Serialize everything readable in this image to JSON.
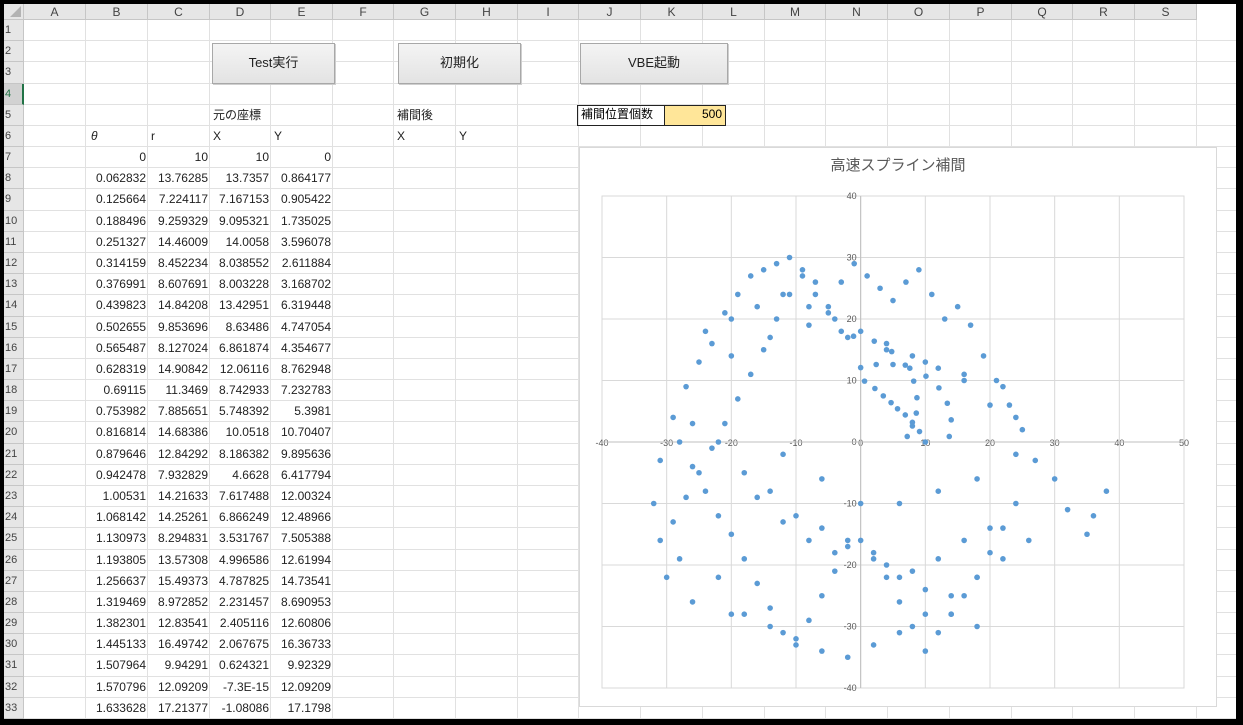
{
  "columns": [
    "A",
    "B",
    "C",
    "D",
    "E",
    "F",
    "G",
    "H",
    "I",
    "J",
    "K",
    "L",
    "M",
    "N",
    "O",
    "P",
    "Q",
    "R",
    "S"
  ],
  "rows": [
    "1",
    "2",
    "3",
    "4",
    "5",
    "6",
    "7",
    "8",
    "9",
    "10",
    "11",
    "12",
    "13",
    "14",
    "15",
    "16",
    "17",
    "18",
    "19",
    "20",
    "21",
    "22",
    "23",
    "24",
    "25",
    "26",
    "27",
    "28",
    "29",
    "30",
    "31",
    "32",
    "33"
  ],
  "buttons": {
    "test": "Test実行",
    "init": "初期化",
    "vbe": "VBE起動"
  },
  "labels": {
    "original": "元の座標",
    "interpolated": "補間後",
    "theta": "θ",
    "r": "r",
    "x": "X",
    "y": "Y",
    "x2": "X",
    "y2": "Y",
    "count_label": "補間位置個数",
    "count_value": "500"
  },
  "table": [
    [
      "0",
      "10",
      "10",
      "0"
    ],
    [
      "0.062832",
      "13.76285",
      "13.7357",
      "0.864177"
    ],
    [
      "0.125664",
      "7.224117",
      "7.167153",
      "0.905422"
    ],
    [
      "0.188496",
      "9.259329",
      "9.095321",
      "1.735025"
    ],
    [
      "0.251327",
      "14.46009",
      "14.0058",
      "3.596078"
    ],
    [
      "0.314159",
      "8.452234",
      "8.038552",
      "2.611884"
    ],
    [
      "0.376991",
      "8.607691",
      "8.003228",
      "3.168702"
    ],
    [
      "0.439823",
      "14.84208",
      "13.42951",
      "6.319448"
    ],
    [
      "0.502655",
      "9.853696",
      "8.63486",
      "4.747054"
    ],
    [
      "0.565487",
      "8.127024",
      "6.861874",
      "4.354677"
    ],
    [
      "0.628319",
      "14.90842",
      "12.06116",
      "8.762948"
    ],
    [
      "0.69115",
      "11.3469",
      "8.742933",
      "7.232783"
    ],
    [
      "0.753982",
      "7.885651",
      "5.748392",
      "5.3981"
    ],
    [
      "0.816814",
      "14.68386",
      "10.0518",
      "10.70407"
    ],
    [
      "0.879646",
      "12.84292",
      "8.186382",
      "9.895636"
    ],
    [
      "0.942478",
      "7.932829",
      "4.6628",
      "6.417794"
    ],
    [
      "1.00531",
      "14.21633",
      "7.617488",
      "12.00324"
    ],
    [
      "1.068142",
      "14.25261",
      "6.866249",
      "12.48966"
    ],
    [
      "1.130973",
      "8.294831",
      "3.531767",
      "7.505388"
    ],
    [
      "1.193805",
      "13.57308",
      "4.996586",
      "12.61994"
    ],
    [
      "1.256637",
      "15.49373",
      "4.787825",
      "14.73541"
    ],
    [
      "1.319469",
      "8.972852",
      "2.231457",
      "8.690953"
    ],
    [
      "1.382301",
      "12.83541",
      "2.405116",
      "12.60806"
    ],
    [
      "1.445133",
      "16.49742",
      "2.067675",
      "16.36733"
    ],
    [
      "1.507964",
      "9.94291",
      "0.624321",
      "9.92329"
    ],
    [
      "1.570796",
      "12.09209",
      "-7.3E-15",
      "12.09209"
    ],
    [
      "1.633628",
      "17.21377",
      "-1.08086",
      "17.1798"
    ]
  ],
  "chart_data": {
    "type": "scatter",
    "title": "高速スプライン補間",
    "xlim": [
      -40,
      50
    ],
    "ylim": [
      -40,
      40
    ],
    "xticks": [
      "-40",
      "-30",
      "-20",
      "-10",
      "0",
      "10",
      "20",
      "30",
      "40",
      "50"
    ],
    "yticks": [
      "40",
      "30",
      "20",
      "10",
      "0",
      "-10",
      "-20",
      "-30",
      "-40"
    ],
    "grid": true,
    "color": "#5b9bd5",
    "x": [
      10,
      13.7,
      7.2,
      9.1,
      14.0,
      8.0,
      8.0,
      13.4,
      8.6,
      6.9,
      12.1,
      8.7,
      5.7,
      10.1,
      8.2,
      4.7,
      7.6,
      6.9,
      3.5,
      5.0,
      4.8,
      2.2,
      2.4,
      2.1,
      0.6,
      0.0,
      -1.1,
      -3,
      -5,
      -7,
      -9,
      -11,
      -13,
      -15,
      -17,
      -19,
      -21,
      -23,
      -25,
      -27,
      -29,
      -31,
      -32,
      -31,
      -29,
      -27,
      -25,
      -23,
      -21,
      -19,
      -17,
      -15,
      -13,
      -11,
      -9,
      -7,
      -5,
      -3,
      -1,
      1,
      3,
      5,
      7,
      9,
      11,
      13,
      15,
      17,
      19,
      21,
      23,
      25,
      27,
      30,
      32,
      35,
      36,
      38,
      24,
      22,
      20,
      18,
      16,
      14,
      12,
      10,
      8,
      6,
      4,
      2,
      0,
      -2,
      -4,
      -6,
      -8,
      -10,
      -12,
      -14,
      -16,
      -18,
      -20,
      -22,
      -24,
      -26,
      -28,
      -22,
      -18,
      -14,
      -10,
      -6,
      -2,
      2,
      6,
      10,
      14,
      18,
      22,
      26,
      -16,
      -12,
      -8,
      -4,
      4,
      8,
      12,
      16,
      20,
      -24,
      -20,
      -16,
      -12,
      -8,
      -4,
      0,
      4,
      8,
      12,
      16,
      20,
      24,
      -26,
      -22,
      -18,
      -14,
      -10,
      -6,
      -2,
      2,
      6,
      10,
      14,
      18,
      -20,
      -14,
      -8,
      -2,
      4,
      10,
      16,
      22,
      -12,
      -6,
      0,
      6,
      12,
      18,
      24,
      -28,
      -30,
      -26,
      -20
    ],
    "y": [
      0,
      0.9,
      0.9,
      1.7,
      3.6,
      2.6,
      3.2,
      6.3,
      4.7,
      4.4,
      8.8,
      7.2,
      5.4,
      10.7,
      9.9,
      6.4,
      12.0,
      12.5,
      7.5,
      12.6,
      14.7,
      8.7,
      12.6,
      16.4,
      9.9,
      12.1,
      17.2,
      18,
      22,
      26,
      28,
      24,
      20,
      15,
      11,
      7,
      3,
      -1,
      -5,
      -9,
      -13,
      -16,
      -10,
      -3,
      4,
      9,
      13,
      16,
      21,
      24,
      27,
      28,
      29,
      30,
      27,
      24,
      21,
      26,
      29,
      27,
      25,
      23,
      26,
      28,
      24,
      20,
      22,
      19,
      14,
      10,
      6,
      2,
      -3,
      -6,
      -11,
      -15,
      -12,
      -8,
      -10,
      -14,
      -18,
      -22,
      -25,
      -28,
      -31,
      -34,
      -30,
      -26,
      -22,
      -18,
      -16,
      -17,
      -21,
      -25,
      -29,
      -33,
      -31,
      -27,
      -23,
      -19,
      -15,
      -12,
      -8,
      -4,
      0,
      -22,
      -28,
      -30,
      -32,
      -34,
      -35,
      -33,
      -31,
      -28,
      -25,
      -22,
      -19,
      -16,
      -9,
      -13,
      -16,
      -18,
      -20,
      -21,
      -19,
      -16,
      -14,
      18,
      20,
      22,
      24,
      22,
      20,
      18,
      16,
      14,
      12,
      10,
      6,
      4,
      3,
      0,
      -5,
      -8,
      -12,
      -14,
      -16,
      -19,
      -22,
      -24,
      -28,
      -30,
      14,
      17,
      19,
      17,
      15,
      13,
      11,
      9,
      -2,
      -6,
      -10,
      -10,
      -8,
      -6,
      -2,
      -19,
      -22,
      -26,
      -28
    ]
  }
}
